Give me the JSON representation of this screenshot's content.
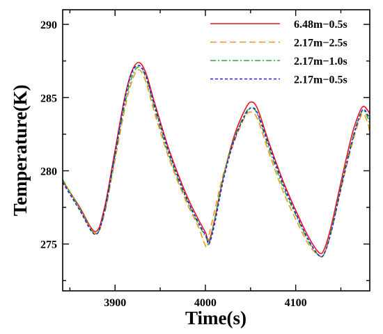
{
  "chart_data": {
    "type": "line",
    "title": "",
    "xlabel": "Time(s)",
    "ylabel": "Temperature(K)",
    "xlim": [
      3842,
      4182
    ],
    "ylim": [
      271.8,
      291
    ],
    "x_ticks": [
      3900,
      4000,
      4100
    ],
    "y_ticks": [
      275,
      280,
      285,
      290
    ],
    "x_tick_labels": [
      "3900",
      "4000",
      "4100"
    ],
    "y_tick_labels": [
      "275",
      "280",
      "285",
      "290"
    ],
    "grid": false,
    "legend_position": "top-right",
    "series": [
      {
        "name": "6.48m−0.5s",
        "color": "#e8141e",
        "dash": "solid",
        "points": [
          [
            3842,
            279.3
          ],
          [
            3860,
            277.6
          ],
          [
            3878,
            275.85
          ],
          [
            3888,
            277.4
          ],
          [
            3898,
            280.7
          ],
          [
            3910,
            284.8
          ],
          [
            3918,
            286.7
          ],
          [
            3926,
            287.4
          ],
          [
            3934,
            286.7
          ],
          [
            3944,
            284.6
          ],
          [
            3960,
            281.4
          ],
          [
            3978,
            278.5
          ],
          [
            3992,
            276.7
          ],
          [
            4000,
            275.8
          ],
          [
            4004,
            275.2
          ],
          [
            4010,
            276.6
          ],
          [
            4020,
            279.6
          ],
          [
            4032,
            282.4
          ],
          [
            4044,
            284.2
          ],
          [
            4051,
            284.7
          ],
          [
            4058,
            284.2
          ],
          [
            4070,
            282.0
          ],
          [
            4086,
            279.3
          ],
          [
            4100,
            277.3
          ],
          [
            4114,
            275.5
          ],
          [
            4126,
            274.4
          ],
          [
            4132,
            274.7
          ],
          [
            4140,
            276.4
          ],
          [
            4150,
            279.2
          ],
          [
            4162,
            282.4
          ],
          [
            4170,
            283.9
          ],
          [
            4175,
            284.4
          ],
          [
            4180,
            284.1
          ],
          [
            4182,
            283.9
          ]
        ]
      },
      {
        "name": "2.17m−2.5s",
        "color": "#f0931e",
        "dash": "dashed",
        "points": [
          [
            3842,
            279.4
          ],
          [
            3860,
            277.5
          ],
          [
            3878,
            275.75
          ],
          [
            3888,
            277.0
          ],
          [
            3898,
            280.1
          ],
          [
            3910,
            284.0
          ],
          [
            3918,
            286.0
          ],
          [
            3926,
            286.9
          ],
          [
            3934,
            286.1
          ],
          [
            3944,
            283.9
          ],
          [
            3960,
            280.8
          ],
          [
            3978,
            278.0
          ],
          [
            3992,
            276.2
          ],
          [
            4001,
            274.8
          ],
          [
            4004,
            275.6
          ],
          [
            4010,
            277.2
          ],
          [
            4020,
            279.8
          ],
          [
            4032,
            282.0
          ],
          [
            4044,
            283.7
          ],
          [
            4051,
            284.0
          ],
          [
            4058,
            283.5
          ],
          [
            4070,
            281.3
          ],
          [
            4086,
            278.6
          ],
          [
            4100,
            276.7
          ],
          [
            4114,
            275.0
          ],
          [
            4126,
            274.2
          ],
          [
            4132,
            274.4
          ],
          [
            4140,
            276.0
          ],
          [
            4150,
            278.7
          ],
          [
            4162,
            281.7
          ],
          [
            4170,
            283.4
          ],
          [
            4175,
            283.9
          ],
          [
            4180,
            283.2
          ],
          [
            4182,
            282.6
          ]
        ]
      },
      {
        "name": "2.17m−1.0s",
        "color": "#1eb41e",
        "dash": "dashdot",
        "points": [
          [
            3842,
            279.4
          ],
          [
            3860,
            277.5
          ],
          [
            3878,
            275.7
          ],
          [
            3888,
            277.1
          ],
          [
            3898,
            280.3
          ],
          [
            3910,
            284.3
          ],
          [
            3918,
            286.3
          ],
          [
            3926,
            287.1
          ],
          [
            3934,
            286.4
          ],
          [
            3944,
            284.2
          ],
          [
            3960,
            281.0
          ],
          [
            3978,
            278.2
          ],
          [
            3992,
            276.4
          ],
          [
            4001,
            275.4
          ],
          [
            4004,
            275.0
          ],
          [
            4010,
            276.6
          ],
          [
            4020,
            279.6
          ],
          [
            4032,
            282.2
          ],
          [
            4044,
            283.9
          ],
          [
            4051,
            284.3
          ],
          [
            4058,
            283.8
          ],
          [
            4070,
            281.6
          ],
          [
            4086,
            278.9
          ],
          [
            4100,
            277.0
          ],
          [
            4114,
            275.2
          ],
          [
            4126,
            274.2
          ],
          [
            4132,
            274.4
          ],
          [
            4140,
            276.1
          ],
          [
            4150,
            278.9
          ],
          [
            4162,
            282.0
          ],
          [
            4170,
            283.6
          ],
          [
            4175,
            284.1
          ],
          [
            4180,
            283.6
          ],
          [
            4182,
            283.2
          ]
        ]
      },
      {
        "name": "2.17m−0.5s",
        "color": "#1e1ee8",
        "dash": "dotted",
        "points": [
          [
            3842,
            279.2
          ],
          [
            3860,
            277.4
          ],
          [
            3878,
            275.65
          ],
          [
            3888,
            277.2
          ],
          [
            3898,
            280.5
          ],
          [
            3910,
            284.6
          ],
          [
            3918,
            286.6
          ],
          [
            3926,
            287.2
          ],
          [
            3934,
            286.5
          ],
          [
            3944,
            284.4
          ],
          [
            3960,
            281.2
          ],
          [
            3978,
            278.3
          ],
          [
            3992,
            276.5
          ],
          [
            4001,
            275.5
          ],
          [
            4004,
            275.0
          ],
          [
            4010,
            276.3
          ],
          [
            4020,
            279.4
          ],
          [
            4032,
            282.1
          ],
          [
            4044,
            283.8
          ],
          [
            4051,
            284.3
          ],
          [
            4058,
            283.9
          ],
          [
            4070,
            281.8
          ],
          [
            4086,
            279.1
          ],
          [
            4100,
            277.1
          ],
          [
            4114,
            275.3
          ],
          [
            4126,
            274.2
          ],
          [
            4132,
            274.4
          ],
          [
            4140,
            276.0
          ],
          [
            4150,
            278.8
          ],
          [
            4162,
            281.9
          ],
          [
            4170,
            283.6
          ],
          [
            4175,
            284.2
          ],
          [
            4180,
            283.8
          ],
          [
            4182,
            283.5
          ]
        ]
      }
    ]
  }
}
